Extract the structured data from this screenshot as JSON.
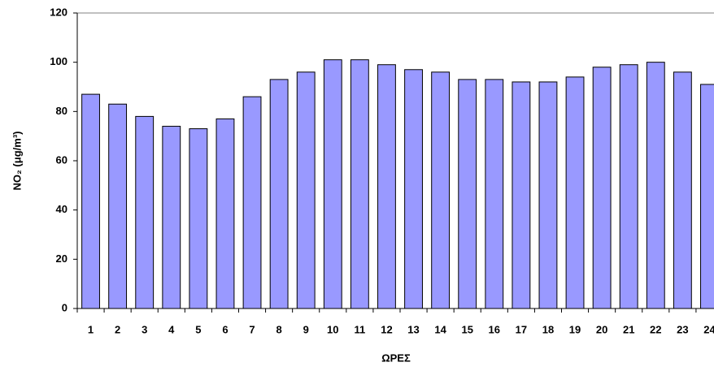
{
  "chart_data": {
    "type": "bar",
    "categories": [
      "1",
      "2",
      "3",
      "4",
      "5",
      "6",
      "7",
      "8",
      "9",
      "10",
      "11",
      "12",
      "13",
      "14",
      "15",
      "16",
      "17",
      "18",
      "19",
      "20",
      "21",
      "22",
      "23",
      "24"
    ],
    "values": [
      87,
      83,
      78,
      74,
      73,
      77,
      86,
      93,
      96,
      101,
      101,
      99,
      97,
      96,
      93,
      93,
      92,
      92,
      94,
      98,
      99,
      100,
      96,
      91
    ],
    "color": "#9999ff",
    "ylim": [
      0,
      120
    ],
    "yticks": [
      0,
      20,
      40,
      60,
      80,
      100,
      120
    ],
    "grid": false,
    "x_label": "ΩΡΕΣ",
    "y_label": "NO₂ (μg/m³)"
  }
}
